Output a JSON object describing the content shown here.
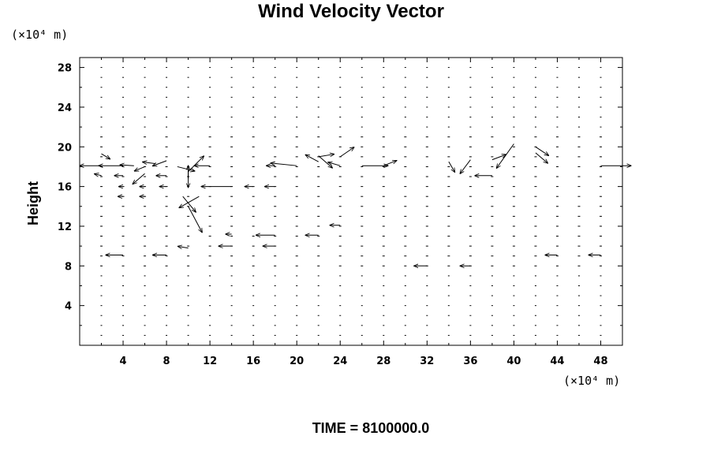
{
  "chart_data": {
    "type": "vector-field",
    "title": "Wind Velocity Vector",
    "ylabel": "Height",
    "x_unit_label": "(×10⁴ m)",
    "y_unit_label": "(×10⁴ m)",
    "footer": "TIME = 8100000.0",
    "xlim": [
      0,
      50
    ],
    "ylim": [
      0,
      29
    ],
    "x_ticks": [
      4,
      8,
      12,
      16,
      20,
      24,
      28,
      32,
      36,
      40,
      44,
      48
    ],
    "y_ticks": [
      4,
      8,
      12,
      16,
      20,
      24,
      28
    ],
    "grid": false,
    "grid_x_spacing": 2,
    "grid_y_spacing": 1,
    "vectors": [
      {
        "x": 2,
        "y": 19.3,
        "u": 1.0,
        "v": -0.6
      },
      {
        "x": 2,
        "y": 18.1,
        "u": -2.5,
        "v": 0.0
      },
      {
        "x": 2,
        "y": 17.1,
        "u": -0.8,
        "v": 0.2
      },
      {
        "x": 4,
        "y": 18.1,
        "u": -2.8,
        "v": 0.0
      },
      {
        "x": 4,
        "y": 17.1,
        "u": -1.0,
        "v": 0.0
      },
      {
        "x": 4,
        "y": 16.0,
        "u": -0.5,
        "v": 0.0
      },
      {
        "x": 4,
        "y": 15.0,
        "u": -0.6,
        "v": 0.0
      },
      {
        "x": 5,
        "y": 18.1,
        "u": -1.6,
        "v": 0.1
      },
      {
        "x": 6,
        "y": 18.0,
        "u": -1.2,
        "v": -0.5
      },
      {
        "x": 6,
        "y": 17.3,
        "u": -1.4,
        "v": -1.2
      },
      {
        "x": 6,
        "y": 16.0,
        "u": -0.6,
        "v": 0.0
      },
      {
        "x": 6,
        "y": 15.0,
        "u": -0.6,
        "v": 0.0
      },
      {
        "x": 7,
        "y": 18.3,
        "u": -1.5,
        "v": 0.2
      },
      {
        "x": 8,
        "y": 18.6,
        "u": -1.6,
        "v": -0.6
      },
      {
        "x": 8,
        "y": 17.1,
        "u": -1.2,
        "v": 0.0
      },
      {
        "x": 8,
        "y": 16.0,
        "u": -0.8,
        "v": 0.0
      },
      {
        "x": 9,
        "y": 18.0,
        "u": 2.0,
        "v": -0.5
      },
      {
        "x": 10,
        "y": 18.1,
        "u": 0.0,
        "v": -2.5
      },
      {
        "x": 10,
        "y": 16.8,
        "u": 0.0,
        "v": 1.5
      },
      {
        "x": 10,
        "y": 17.5,
        "u": 1.8,
        "v": 1.8
      },
      {
        "x": 9.5,
        "y": 15.0,
        "u": 1.5,
        "v": -1.8
      },
      {
        "x": 10,
        "y": 14.0,
        "u": 1.6,
        "v": -3.0
      },
      {
        "x": 11,
        "y": 15.0,
        "u": -2.3,
        "v": -1.3
      },
      {
        "x": 12,
        "y": 18.1,
        "u": -1.8,
        "v": 0.0
      },
      {
        "x": 14,
        "y": 16.0,
        "u": -3.5,
        "v": 0.0
      },
      {
        "x": 16,
        "y": 16.0,
        "u": -1.0,
        "v": 0.0
      },
      {
        "x": 18,
        "y": 18.1,
        "u": -1.0,
        "v": 0.0
      },
      {
        "x": 18,
        "y": 16.0,
        "u": -1.2,
        "v": 0.0
      },
      {
        "x": 20,
        "y": 18.1,
        "u": -3.0,
        "v": 0.3
      },
      {
        "x": 22,
        "y": 19.0,
        "u": 1.8,
        "v": 0.3
      },
      {
        "x": 22,
        "y": 18.5,
        "u": -1.5,
        "v": 0.8
      },
      {
        "x": 22,
        "y": 19.1,
        "u": 1.6,
        "v": -1.4
      },
      {
        "x": 24,
        "y": 19.0,
        "u": 1.6,
        "v": 1.1
      },
      {
        "x": 24,
        "y": 18.1,
        "u": -1.4,
        "v": 0.4
      },
      {
        "x": 26,
        "y": 18.1,
        "u": 3.0,
        "v": 0.0
      },
      {
        "x": 28,
        "y": 18.1,
        "u": 1.5,
        "v": 0.6
      },
      {
        "x": 34,
        "y": 18.5,
        "u": 0.7,
        "v": -1.2
      },
      {
        "x": 36,
        "y": 18.7,
        "u": -1.2,
        "v": -1.6
      },
      {
        "x": 38,
        "y": 18.7,
        "u": 1.6,
        "v": 0.6
      },
      {
        "x": 40,
        "y": 20.3,
        "u": -2.0,
        "v": -2.8
      },
      {
        "x": 42,
        "y": 20.0,
        "u": 1.5,
        "v": -1.0
      },
      {
        "x": 42,
        "y": 19.4,
        "u": 1.4,
        "v": -1.2
      },
      {
        "x": 38,
        "y": 17.1,
        "u": -2.0,
        "v": 0.0
      },
      {
        "x": 48,
        "y": 18.1,
        "u": 3.5,
        "v": 0.0
      },
      {
        "x": 14,
        "y": 11.2,
        "u": -0.7,
        "v": 0.0
      },
      {
        "x": 18,
        "y": 11.1,
        "u": -2.2,
        "v": 0.0
      },
      {
        "x": 22,
        "y": 11.1,
        "u": -1.5,
        "v": 0.0
      },
      {
        "x": 24,
        "y": 12.1,
        "u": -1.2,
        "v": 0.0
      },
      {
        "x": 14,
        "y": 10.0,
        "u": -1.5,
        "v": 0.0
      },
      {
        "x": 10,
        "y": 9.8,
        "u": -1.2,
        "v": 0.2
      },
      {
        "x": 4,
        "y": 9.1,
        "u": -2.0,
        "v": 0.0
      },
      {
        "x": 8,
        "y": 9.1,
        "u": -1.6,
        "v": 0.0
      },
      {
        "x": 18,
        "y": 10.0,
        "u": -1.4,
        "v": 0.0
      },
      {
        "x": 32,
        "y": 8.0,
        "u": -1.5,
        "v": 0.0
      },
      {
        "x": 36,
        "y": 8.0,
        "u": -1.2,
        "v": 0.0
      },
      {
        "x": 44,
        "y": 9.1,
        "u": -1.4,
        "v": 0.0
      },
      {
        "x": 48,
        "y": 9.1,
        "u": -1.4,
        "v": 0.0
      }
    ]
  }
}
